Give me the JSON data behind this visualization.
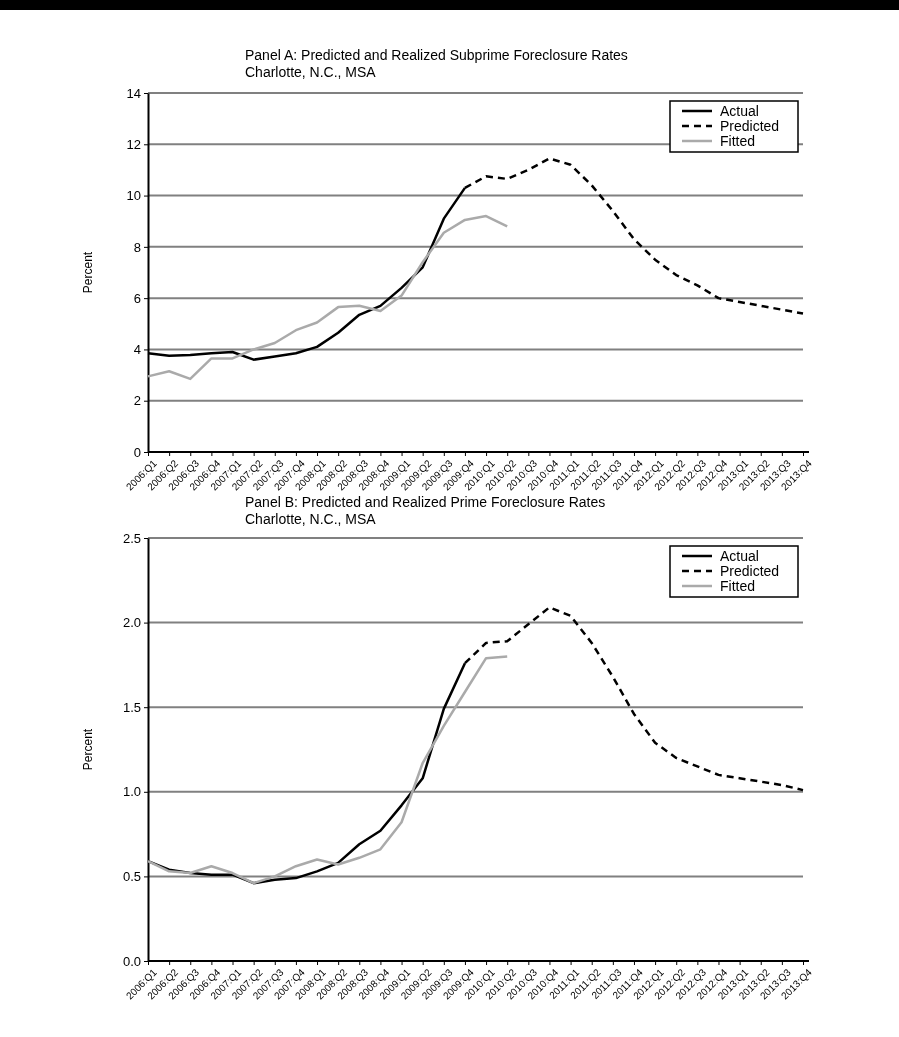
{
  "chart_data": [
    {
      "type": "line",
      "title": "Panel A: Predicted and Realized Subprime Foreclosure Rates",
      "subtitle": "Charlotte, N.C., MSA",
      "ylabel": "Percent",
      "categories": [
        "2006:Q1",
        "2006:Q2",
        "2006:Q3",
        "2006:Q4",
        "2007:Q1",
        "2007:Q2",
        "2007:Q3",
        "2007:Q4",
        "2008:Q1",
        "2008:Q2",
        "2008:Q3",
        "2008:Q4",
        "2009:Q1",
        "2009:Q2",
        "2009:Q3",
        "2009:Q4",
        "2010:Q1",
        "2010:Q2",
        "2010:Q3",
        "2010:Q4",
        "2011:Q1",
        "2011:Q2",
        "2011:Q3",
        "2011:Q4",
        "2012:Q1",
        "2012:Q2",
        "2012:Q3",
        "2012:Q4",
        "2013:Q1",
        "2013:Q2",
        "2013:Q3",
        "2013:Q4"
      ],
      "series": [
        {
          "name": "Actual",
          "color": "#000000",
          "line_style": "solid",
          "values": [
            3.85,
            3.75,
            3.78,
            3.85,
            3.9,
            3.6,
            3.72,
            3.85,
            4.1,
            4.65,
            5.35,
            5.7,
            6.4,
            7.2,
            9.1,
            10.3,
            null,
            null,
            null,
            null,
            null,
            null,
            null,
            null,
            null,
            null,
            null,
            null,
            null,
            null,
            null,
            null
          ]
        },
        {
          "name": "Predicted",
          "color": "#000000",
          "line_style": "dashed",
          "values": [
            null,
            null,
            null,
            null,
            null,
            null,
            null,
            null,
            null,
            null,
            null,
            null,
            null,
            null,
            null,
            10.3,
            10.75,
            10.65,
            11.0,
            11.45,
            11.2,
            10.4,
            9.4,
            8.3,
            7.5,
            6.9,
            6.5,
            6.0,
            5.85,
            5.7,
            5.55,
            5.4
          ]
        },
        {
          "name": "Fitted",
          "color": "#aaaaaa",
          "line_style": "solid",
          "values": [
            2.95,
            3.15,
            2.85,
            3.65,
            3.65,
            4.0,
            4.25,
            4.75,
            5.05,
            5.65,
            5.7,
            5.5,
            6.1,
            7.4,
            8.55,
            9.05,
            9.2,
            8.8,
            null,
            null,
            null,
            null,
            null,
            null,
            null,
            null,
            null,
            null,
            null,
            null,
            null,
            null
          ]
        }
      ],
      "ylim": [
        0,
        14
      ],
      "yticks": [
        0,
        2,
        4,
        6,
        8,
        10,
        12,
        14
      ],
      "grid": "y",
      "legend": "top right",
      "marker": "none"
    },
    {
      "type": "line",
      "title": "Panel B: Predicted and Realized Prime Foreclosure Rates",
      "subtitle": "Charlotte, N.C., MSA",
      "ylabel": "Percent",
      "categories": [
        "2006:Q1",
        "2006:Q2",
        "2006:Q3",
        "2006:Q4",
        "2007:Q1",
        "2007:Q2",
        "2007:Q3",
        "2007:Q4",
        "2008:Q1",
        "2008:Q2",
        "2008:Q3",
        "2008:Q4",
        "2009:Q1",
        "2009:Q2",
        "2009:Q3",
        "2009:Q4",
        "2010:Q1",
        "2010:Q2",
        "2010:Q3",
        "2010:Q4",
        "2011:Q1",
        "2011:Q2",
        "2011:Q3",
        "2011:Q4",
        "2012:Q1",
        "2012:Q2",
        "2012:Q3",
        "2012:Q4",
        "2013:Q1",
        "2013:Q2",
        "2013:Q3",
        "2013:Q4"
      ],
      "series": [
        {
          "name": "Actual",
          "color": "#000000",
          "line_style": "solid",
          "values": [
            0.59,
            0.54,
            0.52,
            0.51,
            0.51,
            0.46,
            0.48,
            0.49,
            0.53,
            0.58,
            0.69,
            0.77,
            0.92,
            1.08,
            1.49,
            1.76,
            null,
            null,
            null,
            null,
            null,
            null,
            null,
            null,
            null,
            null,
            null,
            null,
            null,
            null,
            null,
            null
          ]
        },
        {
          "name": "Predicted",
          "color": "#000000",
          "line_style": "dashed",
          "values": [
            null,
            null,
            null,
            null,
            null,
            null,
            null,
            null,
            null,
            null,
            null,
            null,
            null,
            null,
            null,
            1.76,
            1.88,
            1.89,
            1.99,
            2.09,
            2.04,
            1.88,
            1.68,
            1.46,
            1.29,
            1.2,
            1.15,
            1.1,
            1.08,
            1.06,
            1.04,
            1.01
          ]
        },
        {
          "name": "Fitted",
          "color": "#aaaaaa",
          "line_style": "solid",
          "values": [
            0.59,
            0.53,
            0.52,
            0.56,
            0.52,
            0.46,
            0.5,
            0.56,
            0.6,
            0.57,
            0.61,
            0.66,
            0.82,
            1.17,
            1.39,
            1.59,
            1.79,
            1.8,
            null,
            null,
            null,
            null,
            null,
            null,
            null,
            null,
            null,
            null,
            null,
            null,
            null,
            null
          ]
        }
      ],
      "ylim": [
        0,
        2.5
      ],
      "yticks": [
        {
          "value": 0,
          "label": "0.0"
        },
        {
          "value": 0.5,
          "label": "0.5"
        },
        {
          "value": 1,
          "label": "1.0"
        },
        {
          "value": 1.5,
          "label": "1.5"
        },
        {
          "value": 2,
          "label": "2.0"
        },
        {
          "value": 2.5,
          "label": "2.5"
        }
      ],
      "grid": "y",
      "legend": "top right",
      "marker": "none"
    }
  ]
}
